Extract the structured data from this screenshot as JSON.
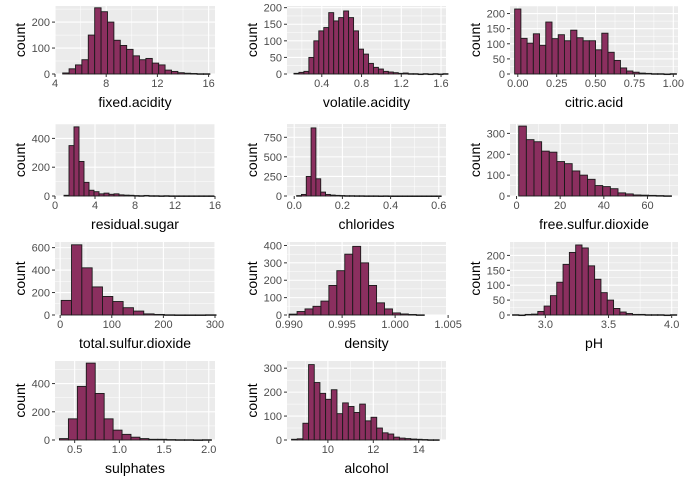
{
  "style": {
    "panel_bg": "#EBEBEB",
    "grid_major": "#FFFFFF",
    "bar_fill": "#8B2F5F",
    "bar_stroke": "#1A1A1A",
    "tick_text": "#4D4D4D",
    "label_text": "#000000"
  },
  "chart_data": [
    {
      "type": "bar",
      "title": "",
      "xlabel": "fixed.acidity",
      "ylabel": "count",
      "xlim": [
        4,
        16.5
      ],
      "ylim": [
        0,
        262
      ],
      "xticks": [
        4,
        8,
        12,
        16
      ],
      "xtick_labels": [
        "4",
        "8",
        "12",
        "16"
      ],
      "yticks": [
        0,
        100,
        200
      ],
      "ytick_labels": [
        "0",
        "100",
        "200"
      ],
      "bin_start": 4.6,
      "bin_width": 0.5,
      "counts": [
        4,
        20,
        35,
        55,
        150,
        255,
        240,
        200,
        130,
        110,
        95,
        70,
        55,
        60,
        42,
        35,
        15,
        10,
        5,
        3,
        2,
        1,
        1
      ]
    },
    {
      "type": "bar",
      "title": "",
      "xlabel": "volatile.acidity",
      "ylabel": "count",
      "xlim": [
        0.05,
        1.65
      ],
      "ylim": [
        0,
        205
      ],
      "xticks": [
        0.4,
        0.8,
        1.2,
        1.6
      ],
      "xtick_labels": [
        "0.4",
        "0.8",
        "1.2",
        "1.6"
      ],
      "yticks": [
        0,
        50,
        100,
        150,
        200
      ],
      "ytick_labels": [
        "0",
        "50",
        "100",
        "150",
        "200"
      ],
      "bin_start": 0.12,
      "bin_width": 0.05,
      "counts": [
        2,
        5,
        8,
        50,
        100,
        130,
        140,
        185,
        160,
        170,
        190,
        170,
        130,
        75,
        60,
        32,
        20,
        15,
        8,
        6,
        4,
        2,
        3,
        1,
        1,
        0,
        1,
        0,
        1,
        0,
        1
      ]
    },
    {
      "type": "bar",
      "title": "",
      "xlabel": "citric.acid",
      "ylabel": "count",
      "xlim": [
        -0.05,
        1.03
      ],
      "ylim": [
        0,
        225
      ],
      "xticks": [
        0,
        0.25,
        0.5,
        0.75,
        1
      ],
      "xtick_labels": [
        "0.00",
        "0.25",
        "0.50",
        "0.75",
        "1.00"
      ],
      "yticks": [
        0,
        50,
        100,
        150,
        200
      ],
      "ytick_labels": [
        "0",
        "50",
        "100",
        "150",
        "200"
      ],
      "bin_start": -0.02,
      "bin_width": 0.04,
      "counts": [
        215,
        118,
        102,
        133,
        95,
        172,
        117,
        130,
        110,
        145,
        120,
        110,
        110,
        80,
        135,
        72,
        45,
        20,
        10,
        6,
        3,
        2,
        1,
        1,
        0,
        1
      ]
    },
    {
      "type": "bar",
      "title": "",
      "xlabel": "residual.sugar",
      "ylabel": "count",
      "xlim": [
        0,
        16
      ],
      "ylim": [
        0,
        500
      ],
      "xticks": [
        0,
        4,
        8,
        12,
        16
      ],
      "xtick_labels": [
        "0",
        "4",
        "8",
        "12",
        "16"
      ],
      "yticks": [
        0,
        200,
        400
      ],
      "ytick_labels": [
        "0",
        "200",
        "400"
      ],
      "bin_start": 0.9,
      "bin_width": 0.5,
      "counts": [
        5,
        350,
        480,
        240,
        95,
        40,
        30,
        15,
        20,
        12,
        15,
        8,
        6,
        5,
        3,
        2,
        4,
        2,
        2,
        1,
        2,
        1,
        1,
        1,
        1,
        1,
        1,
        1,
        1,
        1
      ]
    },
    {
      "type": "bar",
      "title": "",
      "xlabel": "chlorides",
      "ylabel": "count",
      "xlim": [
        -0.03,
        0.63
      ],
      "ylim": [
        0,
        920
      ],
      "xticks": [
        0,
        0.2,
        0.4,
        0.6
      ],
      "xtick_labels": [
        "0.0",
        "0.2",
        "0.4",
        "0.6"
      ],
      "yticks": [
        0,
        250,
        500,
        750
      ],
      "ytick_labels": [
        "0",
        "250",
        "500",
        "750"
      ],
      "bin_start": 0.01,
      "bin_width": 0.02,
      "counts": [
        5,
        20,
        250,
        870,
        220,
        50,
        20,
        12,
        8,
        6,
        4,
        4,
        3,
        3,
        2,
        2,
        2,
        1,
        2,
        1,
        1,
        1,
        1,
        1,
        1,
        1,
        1,
        1,
        1,
        1
      ]
    },
    {
      "type": "bar",
      "title": "",
      "xlabel": "free.sulfur.dioxide",
      "ylabel": "count",
      "xlim": [
        -3,
        74
      ],
      "ylim": [
        0,
        345
      ],
      "xticks": [
        0,
        20,
        40,
        60
      ],
      "xtick_labels": [
        "0",
        "20",
        "40",
        "60"
      ],
      "yticks": [
        0,
        100,
        200,
        300
      ],
      "ytick_labels": [
        "0",
        "100",
        "200",
        "300"
      ],
      "bin_start": 1,
      "bin_width": 3.5,
      "counts": [
        335,
        270,
        260,
        215,
        210,
        165,
        155,
        120,
        100,
        80,
        50,
        45,
        35,
        15,
        10,
        5,
        4,
        3,
        2,
        1
      ]
    },
    {
      "type": "bar",
      "title": "",
      "xlabel": "total.sulfur.dioxide",
      "ylabel": "count",
      "xlim": [
        -10,
        300
      ],
      "ylim": [
        0,
        650
      ],
      "xticks": [
        0,
        100,
        200,
        300
      ],
      "xtick_labels": [
        "0",
        "100",
        "200",
        "300"
      ],
      "yticks": [
        0,
        200,
        400,
        600
      ],
      "ytick_labels": [
        "0",
        "200",
        "400",
        "600"
      ],
      "bin_start": 2,
      "bin_width": 20,
      "counts": [
        130,
        625,
        420,
        250,
        165,
        120,
        65,
        35,
        10,
        5,
        2,
        1,
        1,
        1,
        2
      ]
    },
    {
      "type": "bar",
      "title": "",
      "xlabel": "density",
      "ylabel": "count",
      "xlim": [
        0.9898,
        1.0048
      ],
      "ylim": [
        0,
        420
      ],
      "xticks": [
        0.99,
        0.995,
        1,
        1.005
      ],
      "xtick_labels": [
        "0.990",
        "0.995",
        "1.000",
        "1.005"
      ],
      "yticks": [
        0,
        100,
        200,
        300,
        400
      ],
      "ytick_labels": [
        "0",
        "100",
        "200",
        "300",
        "400"
      ],
      "bin_start": 0.99,
      "bin_width": 0.00075,
      "counts": [
        5,
        20,
        35,
        50,
        80,
        170,
        255,
        350,
        395,
        300,
        170,
        70,
        35,
        12,
        6,
        3,
        1
      ]
    },
    {
      "type": "bar",
      "title": "",
      "xlabel": "pH",
      "ylabel": "count",
      "xlim": [
        2.72,
        4.05
      ],
      "ylim": [
        0,
        245
      ],
      "xticks": [
        3,
        3.5,
        4
      ],
      "xtick_labels": [
        "3.0",
        "3.5",
        "4.0"
      ],
      "yticks": [
        0,
        50,
        100,
        150,
        200
      ],
      "ytick_labels": [
        "0",
        "50",
        "100",
        "150",
        "200"
      ],
      "bin_start": 2.74,
      "bin_width": 0.05,
      "counts": [
        1,
        0,
        2,
        3,
        12,
        30,
        65,
        110,
        170,
        210,
        235,
        225,
        165,
        120,
        75,
        50,
        22,
        10,
        5,
        2,
        2,
        1,
        1,
        1,
        0,
        1
      ]
    },
    {
      "type": "bar",
      "title": "",
      "xlabel": "sulphates",
      "ylabel": "count",
      "xlim": [
        0.28,
        2.07
      ],
      "ylim": [
        0,
        560
      ],
      "xticks": [
        0.5,
        1,
        1.5,
        2
      ],
      "xtick_labels": [
        "0.5",
        "1.0",
        "1.5",
        "2.0"
      ],
      "yticks": [
        0,
        200,
        400
      ],
      "ytick_labels": [
        "0",
        "200",
        "400"
      ],
      "bin_start": 0.33,
      "bin_width": 0.1,
      "counts": [
        10,
        150,
        380,
        545,
        330,
        150,
        70,
        40,
        20,
        10,
        5,
        5,
        3,
        2,
        2,
        1,
        2
      ]
    },
    {
      "type": "bar",
      "title": "",
      "xlabel": "alcohol",
      "ylabel": "count",
      "xlim": [
        8.2,
        15.2
      ],
      "ylim": [
        0,
        330
      ],
      "xticks": [
        10,
        12,
        14
      ],
      "xtick_labels": [
        "10",
        "12",
        "14"
      ],
      "yticks": [
        0,
        100,
        200,
        300
      ],
      "ytick_labels": [
        "0",
        "100",
        "200",
        "300"
      ],
      "bin_start": 8.4,
      "bin_width": 0.25,
      "counts": [
        3,
        5,
        70,
        315,
        240,
        195,
        170,
        210,
        110,
        155,
        140,
        115,
        150,
        80,
        95,
        50,
        30,
        25,
        12,
        8,
        6,
        4,
        3,
        2,
        1,
        1
      ]
    }
  ]
}
